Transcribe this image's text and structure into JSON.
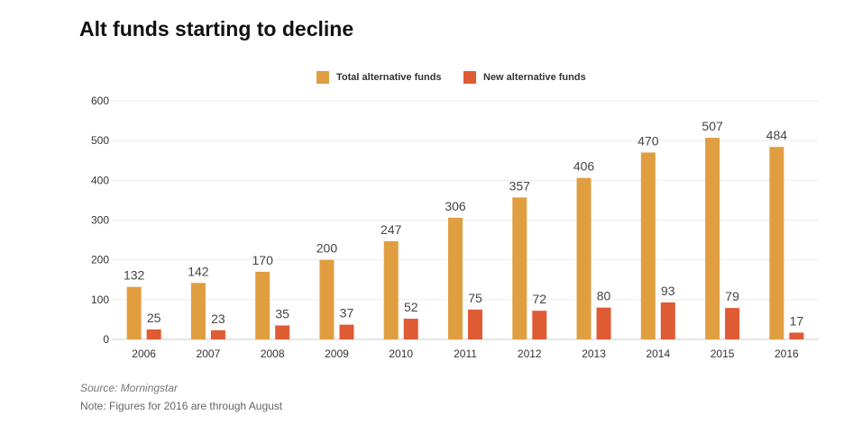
{
  "title": "Alt funds starting to decline",
  "chart_data": {
    "type": "bar",
    "title": "Alt funds starting to decline",
    "xlabel": "",
    "ylabel": "",
    "categories": [
      "2006",
      "2007",
      "2008",
      "2009",
      "2010",
      "2011",
      "2012",
      "2013",
      "2014",
      "2015",
      "2016"
    ],
    "series": [
      {
        "name": "Total alternative funds",
        "color": "#e09e41",
        "values": [
          132,
          142,
          170,
          200,
          247,
          306,
          357,
          406,
          470,
          507,
          484
        ]
      },
      {
        "name": "New alternative funds",
        "color": "#de5b34",
        "values": [
          25,
          23,
          35,
          37,
          52,
          75,
          72,
          80,
          93,
          79,
          17
        ]
      }
    ],
    "ylim": [
      0,
      600
    ],
    "yticks": [
      0,
      100,
      200,
      300,
      400,
      500,
      600
    ],
    "grid": true,
    "legend_placement": "top-center",
    "data_labels": true
  },
  "source": "Source: Morningstar",
  "note": "Note: Figures for 2016 are through August"
}
